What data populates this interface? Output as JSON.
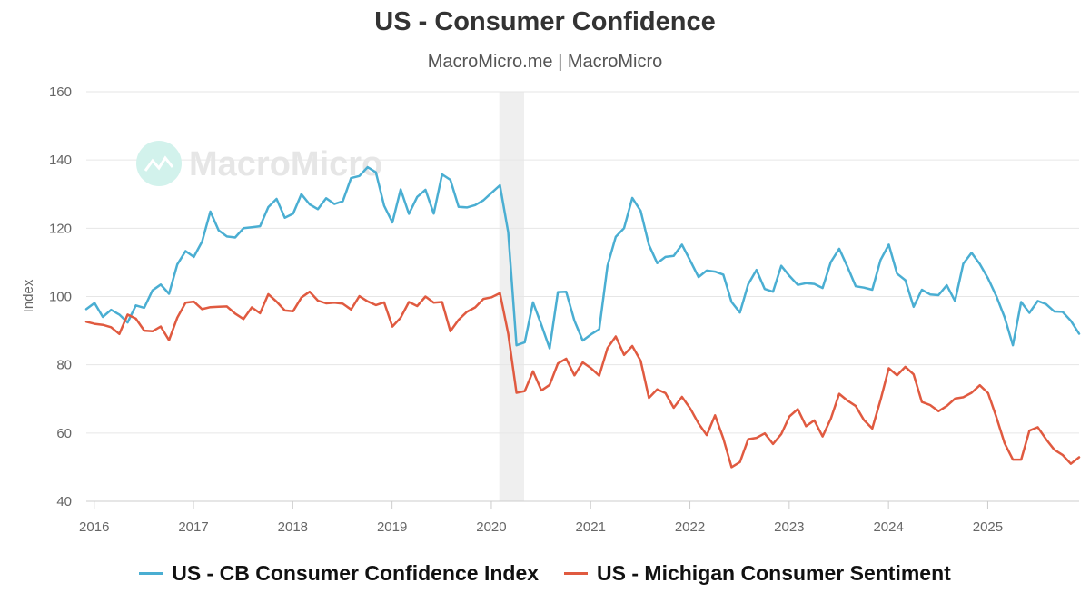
{
  "chart_data": {
    "type": "line",
    "title": "US - Consumer Confidence",
    "subtitle": "MacroMicro.me | MacroMicro",
    "watermark": "MacroMicro",
    "ylabel": "Index",
    "xlabel": "",
    "ylim": [
      40,
      160
    ],
    "xlim": [
      2015.92,
      2025.92
    ],
    "yticks": [
      40,
      60,
      80,
      100,
      120,
      140,
      160
    ],
    "xticks": [
      {
        "label": "2016",
        "value": 2016
      },
      {
        "label": "2017",
        "value": 2017
      },
      {
        "label": "2018",
        "value": 2018
      },
      {
        "label": "2019",
        "value": 2019
      },
      {
        "label": "2020",
        "value": 2020
      },
      {
        "label": "2021",
        "value": 2021
      },
      {
        "label": "2022",
        "value": 2022
      },
      {
        "label": "2023",
        "value": 2023
      },
      {
        "label": "2024",
        "value": 2024
      },
      {
        "label": "2025",
        "value": 2025
      }
    ],
    "recession": {
      "start": 2020.08,
      "end": 2020.33
    },
    "grid": true,
    "legend_position": "bottom",
    "series": [
      {
        "name": "US - CB Consumer Confidence Index",
        "color": "#4aaed2",
        "start": 2015.92,
        "step": 0.0833333,
        "values": [
          96.3,
          98.1,
          94.0,
          96.1,
          94.7,
          92.4,
          97.4,
          96.7,
          101.8,
          103.5,
          100.8,
          109.4,
          113.3,
          111.6,
          116.1,
          124.9,
          119.4,
          117.6,
          117.3,
          120.0,
          120.3,
          120.6,
          126.2,
          128.6,
          123.1,
          124.3,
          130.0,
          127.0,
          125.6,
          128.8,
          127.1,
          127.9,
          134.7,
          135.3,
          137.9,
          136.4,
          126.6,
          121.7,
          131.4,
          124.2,
          129.2,
          131.3,
          124.3,
          135.8,
          134.2,
          126.3,
          126.1,
          126.8,
          128.2,
          130.4,
          132.6,
          118.8,
          85.7,
          86.6,
          98.3,
          91.7,
          84.8,
          101.3,
          101.4,
          92.9,
          87.1,
          88.9,
          90.4,
          109.0,
          117.5,
          120.0,
          128.9,
          125.1,
          115.1,
          109.8,
          111.6,
          111.9,
          115.2,
          110.5,
          105.7,
          107.6,
          107.3,
          106.4,
          98.4,
          95.3,
          103.6,
          107.8,
          102.2,
          101.4,
          109.0,
          106.0,
          103.4,
          103.9,
          103.7,
          102.5,
          110.1,
          114.0,
          108.7,
          103.0,
          102.6,
          102.0,
          110.7,
          115.2,
          106.7,
          104.8,
          97.0,
          102.0,
          100.6,
          100.4,
          103.3,
          98.7,
          109.6,
          112.8,
          109.5,
          105.3,
          100.1,
          93.9,
          85.7,
          98.4,
          95.2,
          98.7,
          97.8,
          95.6,
          95.5,
          92.9,
          89.1
        ]
      },
      {
        "name": "US - Michigan Consumer Sentiment",
        "color": "#e05a40",
        "start": 2015.92,
        "step": 0.0833333,
        "values": [
          92.6,
          92.0,
          91.7,
          91.0,
          89.0,
          94.7,
          93.5,
          90.0,
          89.8,
          91.2,
          87.2,
          93.8,
          98.2,
          98.5,
          96.3,
          96.9,
          97.0,
          97.1,
          95.0,
          93.4,
          96.8,
          95.1,
          100.7,
          98.5,
          95.9,
          95.7,
          99.7,
          101.4,
          98.8,
          98.0,
          98.2,
          97.9,
          96.2,
          100.1,
          98.6,
          97.5,
          98.3,
          91.2,
          93.8,
          98.4,
          97.2,
          100.0,
          98.2,
          98.4,
          89.8,
          93.2,
          95.5,
          96.8,
          99.3,
          99.8,
          101.0,
          89.1,
          71.8,
          72.3,
          78.1,
          72.5,
          74.1,
          80.4,
          81.8,
          76.9,
          80.7,
          79.0,
          76.8,
          84.9,
          88.3,
          82.9,
          85.5,
          81.2,
          70.3,
          72.8,
          71.7,
          67.4,
          70.6,
          67.2,
          62.8,
          59.4,
          65.2,
          58.4,
          50.0,
          51.5,
          58.2,
          58.6,
          59.9,
          56.8,
          59.7,
          64.9,
          67.0,
          62.0,
          63.7,
          59.0,
          64.2,
          71.5,
          69.5,
          67.9,
          63.8,
          61.3,
          69.7,
          79.0,
          76.9,
          79.4,
          77.2,
          69.1,
          68.2,
          66.4,
          67.9,
          70.1,
          70.5,
          71.8,
          74.0,
          71.7,
          64.7,
          57.0,
          52.2,
          52.2,
          60.7,
          61.7,
          58.2,
          55.1,
          53.6,
          51.0,
          52.9
        ]
      }
    ]
  }
}
